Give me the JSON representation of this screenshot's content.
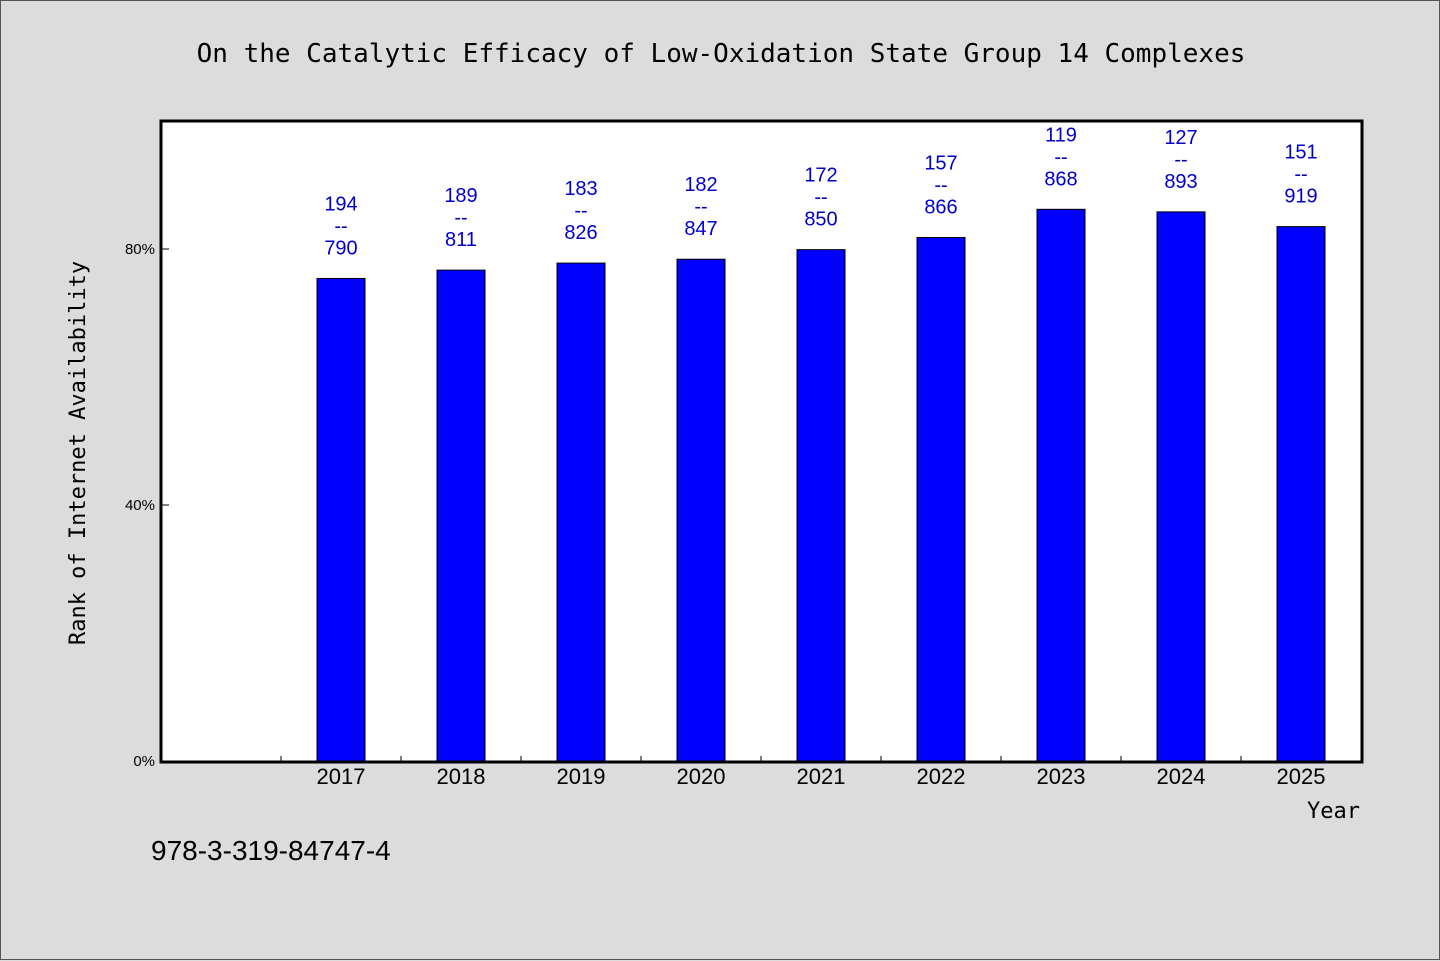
{
  "chart_data": {
    "type": "bar",
    "title": "On the Catalytic Efficacy of Low-Oxidation State Group 14 Complexes",
    "xlabel": "Year",
    "ylabel": "Rank of Internet Availability",
    "categories": [
      "2017",
      "2018",
      "2019",
      "2020",
      "2021",
      "2022",
      "2023",
      "2024",
      "2025"
    ],
    "series": [
      {
        "values": [
          75.4,
          76.7,
          77.8,
          78.4,
          79.9,
          81.8,
          86.2,
          85.8,
          83.5
        ]
      }
    ],
    "data_labels": [
      {
        "top": "194",
        "sep": "--",
        "bottom": "790"
      },
      {
        "top": "189",
        "sep": "--",
        "bottom": "811"
      },
      {
        "top": "183",
        "sep": "--",
        "bottom": "826"
      },
      {
        "top": "182",
        "sep": "--",
        "bottom": "847"
      },
      {
        "top": "172",
        "sep": "--",
        "bottom": "850"
      },
      {
        "top": "157",
        "sep": "--",
        "bottom": "866"
      },
      {
        "top": "119",
        "sep": "--",
        "bottom": "868"
      },
      {
        "top": "127",
        "sep": "--",
        "bottom": "893"
      },
      {
        "top": "151",
        "sep": "--",
        "bottom": "919"
      }
    ],
    "yticks": [
      {
        "value": 0,
        "label": "0%"
      },
      {
        "value": 40,
        "label": "40%"
      },
      {
        "value": 80,
        "label": "80%"
      }
    ],
    "ylim": [
      0,
      100
    ],
    "grid": false,
    "colors": {
      "bar": "#0000ff",
      "label": "#0000cc",
      "background": "#dcdcdc",
      "plot": "#ffffff"
    }
  },
  "footer": {
    "code": "978-3-319-84747-4"
  }
}
